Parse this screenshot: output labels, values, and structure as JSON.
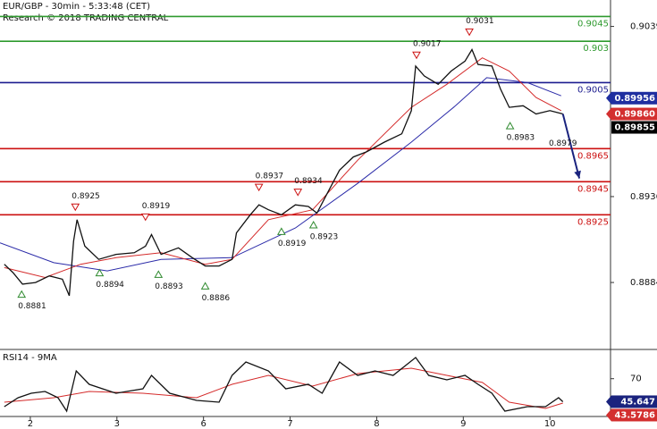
{
  "header": {
    "title": "EUR/GBP - 30min - 5:33:48 (CET)",
    "subtitle": "Research © 2018 TRADING CENTRAL"
  },
  "chart_data": [
    {
      "type": "line",
      "xlim": [
        -0.35,
        6.7
      ],
      "ylim": [
        0.8844,
        0.9055
      ],
      "yticks": [
        0.8884,
        0.8936,
        0.9039
      ],
      "levels": [
        {
          "value": 0.9045,
          "color": "#2f9a2f"
        },
        {
          "value": 0.903,
          "color": "#2f9a2f"
        },
        {
          "value": 0.9005,
          "color": "#1c1c8f"
        },
        {
          "value": 0.8965,
          "color": "#cc1111"
        },
        {
          "value": 0.8945,
          "color": "#cc1111"
        },
        {
          "value": 0.8925,
          "color": "#cc1111"
        }
      ],
      "series": [
        {
          "color": "#111111",
          "x": [
            -0.3,
            -0.2,
            -0.09,
            0.06,
            0.22,
            0.37,
            0.45,
            0.5,
            0.54,
            0.63,
            0.79,
            0.99,
            1.2,
            1.33,
            1.4,
            1.51,
            1.71,
            1.87,
            2.02,
            2.18,
            2.33,
            2.38,
            2.54,
            2.64,
            2.75,
            2.9,
            3.06,
            3.21,
            3.31,
            3.42,
            3.57,
            3.73,
            3.88,
            4.09,
            4.29,
            4.4,
            4.45,
            4.55,
            4.71,
            4.86,
            5.02,
            5.1,
            5.17,
            5.33,
            5.43,
            5.53,
            5.69,
            5.84,
            6.0,
            6.15
          ],
          "values": [
            0.8895,
            0.889,
            0.8883,
            0.8884,
            0.8888,
            0.8886,
            0.8876,
            0.8909,
            0.8922,
            0.8906,
            0.8898,
            0.8901,
            0.8902,
            0.8906,
            0.8913,
            0.8901,
            0.8905,
            0.8899,
            0.8894,
            0.8894,
            0.8898,
            0.8914,
            0.8925,
            0.8931,
            0.8928,
            0.8925,
            0.8931,
            0.893,
            0.8926,
            0.8937,
            0.8952,
            0.896,
            0.8963,
            0.8969,
            0.8974,
            0.8988,
            0.9015,
            0.9009,
            0.9004,
            0.9012,
            0.9018,
            0.9025,
            0.9016,
            0.9015,
            0.9001,
            0.899,
            0.8991,
            0.8986,
            0.8988,
            0.8986
          ]
        },
        {
          "color": "#d42a2a",
          "x": [
            -0.3,
            0.17,
            0.58,
            0.99,
            1.51,
            2.02,
            2.33,
            2.75,
            3.26,
            3.78,
            4.4,
            4.81,
            5.22,
            5.53,
            5.84,
            6.13
          ],
          "values": [
            0.8893,
            0.8887,
            0.8895,
            0.8899,
            0.8902,
            0.8895,
            0.8898,
            0.8922,
            0.8928,
            0.8958,
            0.899,
            0.9004,
            0.902,
            0.9012,
            0.8996,
            0.8988
          ]
        },
        {
          "color": "#2a2aa8",
          "x": [
            -0.35,
            0.27,
            0.89,
            1.51,
            2.33,
            3.06,
            3.78,
            4.4,
            4.91,
            5.27,
            5.74,
            6.13
          ],
          "values": [
            0.8908,
            0.8896,
            0.8891,
            0.8898,
            0.8899,
            0.8917,
            0.8944,
            0.8969,
            0.8991,
            0.9008,
            0.9005,
            0.8997
          ]
        }
      ],
      "forecast": {
        "x": [
          6.15,
          6.34
        ],
        "values": [
          0.8986,
          0.8947
        ],
        "color": "#1a237e"
      },
      "pivots": [
        {
          "x": -0.1,
          "value": 0.8881,
          "kind": "low"
        },
        {
          "x": 0.52,
          "value": 0.8925,
          "kind": "high"
        },
        {
          "x": 0.8,
          "value": 0.8894,
          "kind": "low"
        },
        {
          "x": 1.33,
          "value": 0.8919,
          "kind": "high"
        },
        {
          "x": 1.48,
          "value": 0.8893,
          "kind": "low"
        },
        {
          "x": 2.02,
          "value": 0.8886,
          "kind": "low"
        },
        {
          "x": 2.64,
          "value": 0.8937,
          "kind": "high"
        },
        {
          "x": 2.9,
          "value": 0.8919,
          "kind": "low"
        },
        {
          "x": 3.09,
          "value": 0.8934,
          "kind": "high"
        },
        {
          "x": 3.27,
          "value": 0.8923,
          "kind": "low"
        },
        {
          "x": 4.46,
          "value": 0.9017,
          "kind": "high"
        },
        {
          "x": 5.07,
          "value": 0.9031,
          "kind": "high"
        },
        {
          "x": 5.54,
          "value": 0.8983,
          "kind": "low"
        },
        {
          "x": 6.15,
          "value": 0.8979,
          "kind": "point"
        }
      ],
      "markers": [
        {
          "value": 0.89956,
          "color": "#1f2fa0"
        },
        {
          "value": 0.8986,
          "value_label": "0.89860",
          "color": "#d32f2f"
        },
        {
          "value": 0.89855,
          "color": "#000000"
        }
      ]
    },
    {
      "type": "line",
      "title": "RSI14 - 9MA",
      "xlim": [
        -0.35,
        6.7
      ],
      "ylim": [
        30,
        100
      ],
      "yticks": [
        70
      ],
      "xticks": [
        {
          "value": 0,
          "label": "2"
        },
        {
          "value": 1,
          "label": "3"
        },
        {
          "value": 2,
          "label": "6"
        },
        {
          "value": 3,
          "label": "7"
        },
        {
          "value": 4,
          "label": "8"
        },
        {
          "value": 5,
          "label": "9"
        },
        {
          "value": 6,
          "label": "10"
        }
      ],
      "series": [
        {
          "color": "#111111",
          "x": [
            -0.3,
            -0.14,
            0.01,
            0.17,
            0.32,
            0.42,
            0.53,
            0.68,
            0.99,
            1.3,
            1.4,
            1.61,
            1.92,
            2.18,
            2.33,
            2.49,
            2.75,
            2.95,
            3.21,
            3.37,
            3.57,
            3.78,
            3.98,
            4.19,
            4.45,
            4.6,
            4.81,
            5.02,
            5.17,
            5.33,
            5.48,
            5.74,
            5.95,
            6.1,
            6.15
          ],
          "values": [
            40.4,
            49.9,
            54.6,
            56.5,
            49.9,
            35.7,
            78.2,
            64.1,
            54.6,
            59.3,
            73.5,
            54.6,
            47.0,
            45.1,
            73.5,
            87.7,
            78.2,
            59.3,
            64.1,
            54.6,
            87.7,
            73.5,
            78.2,
            73.5,
            92.4,
            73.5,
            68.8,
            73.5,
            64.1,
            54.6,
            35.7,
            40.4,
            40.4,
            49.9,
            45.6
          ]
        },
        {
          "color": "#d42a2a",
          "x": [
            -0.3,
            0.27,
            0.68,
            1.3,
            1.92,
            2.33,
            2.75,
            3.26,
            3.78,
            4.4,
            4.81,
            5.22,
            5.53,
            5.95,
            6.15
          ],
          "values": [
            45.1,
            49.9,
            56.5,
            54.6,
            49.9,
            64.1,
            73.5,
            62.2,
            75.4,
            81.1,
            73.5,
            66.0,
            45.1,
            38.5,
            44.2
          ]
        }
      ],
      "markers": [
        {
          "value": 45.647,
          "color": "#1a237e"
        },
        {
          "value": 43.5786,
          "color": "#d32f2f"
        }
      ]
    }
  ]
}
